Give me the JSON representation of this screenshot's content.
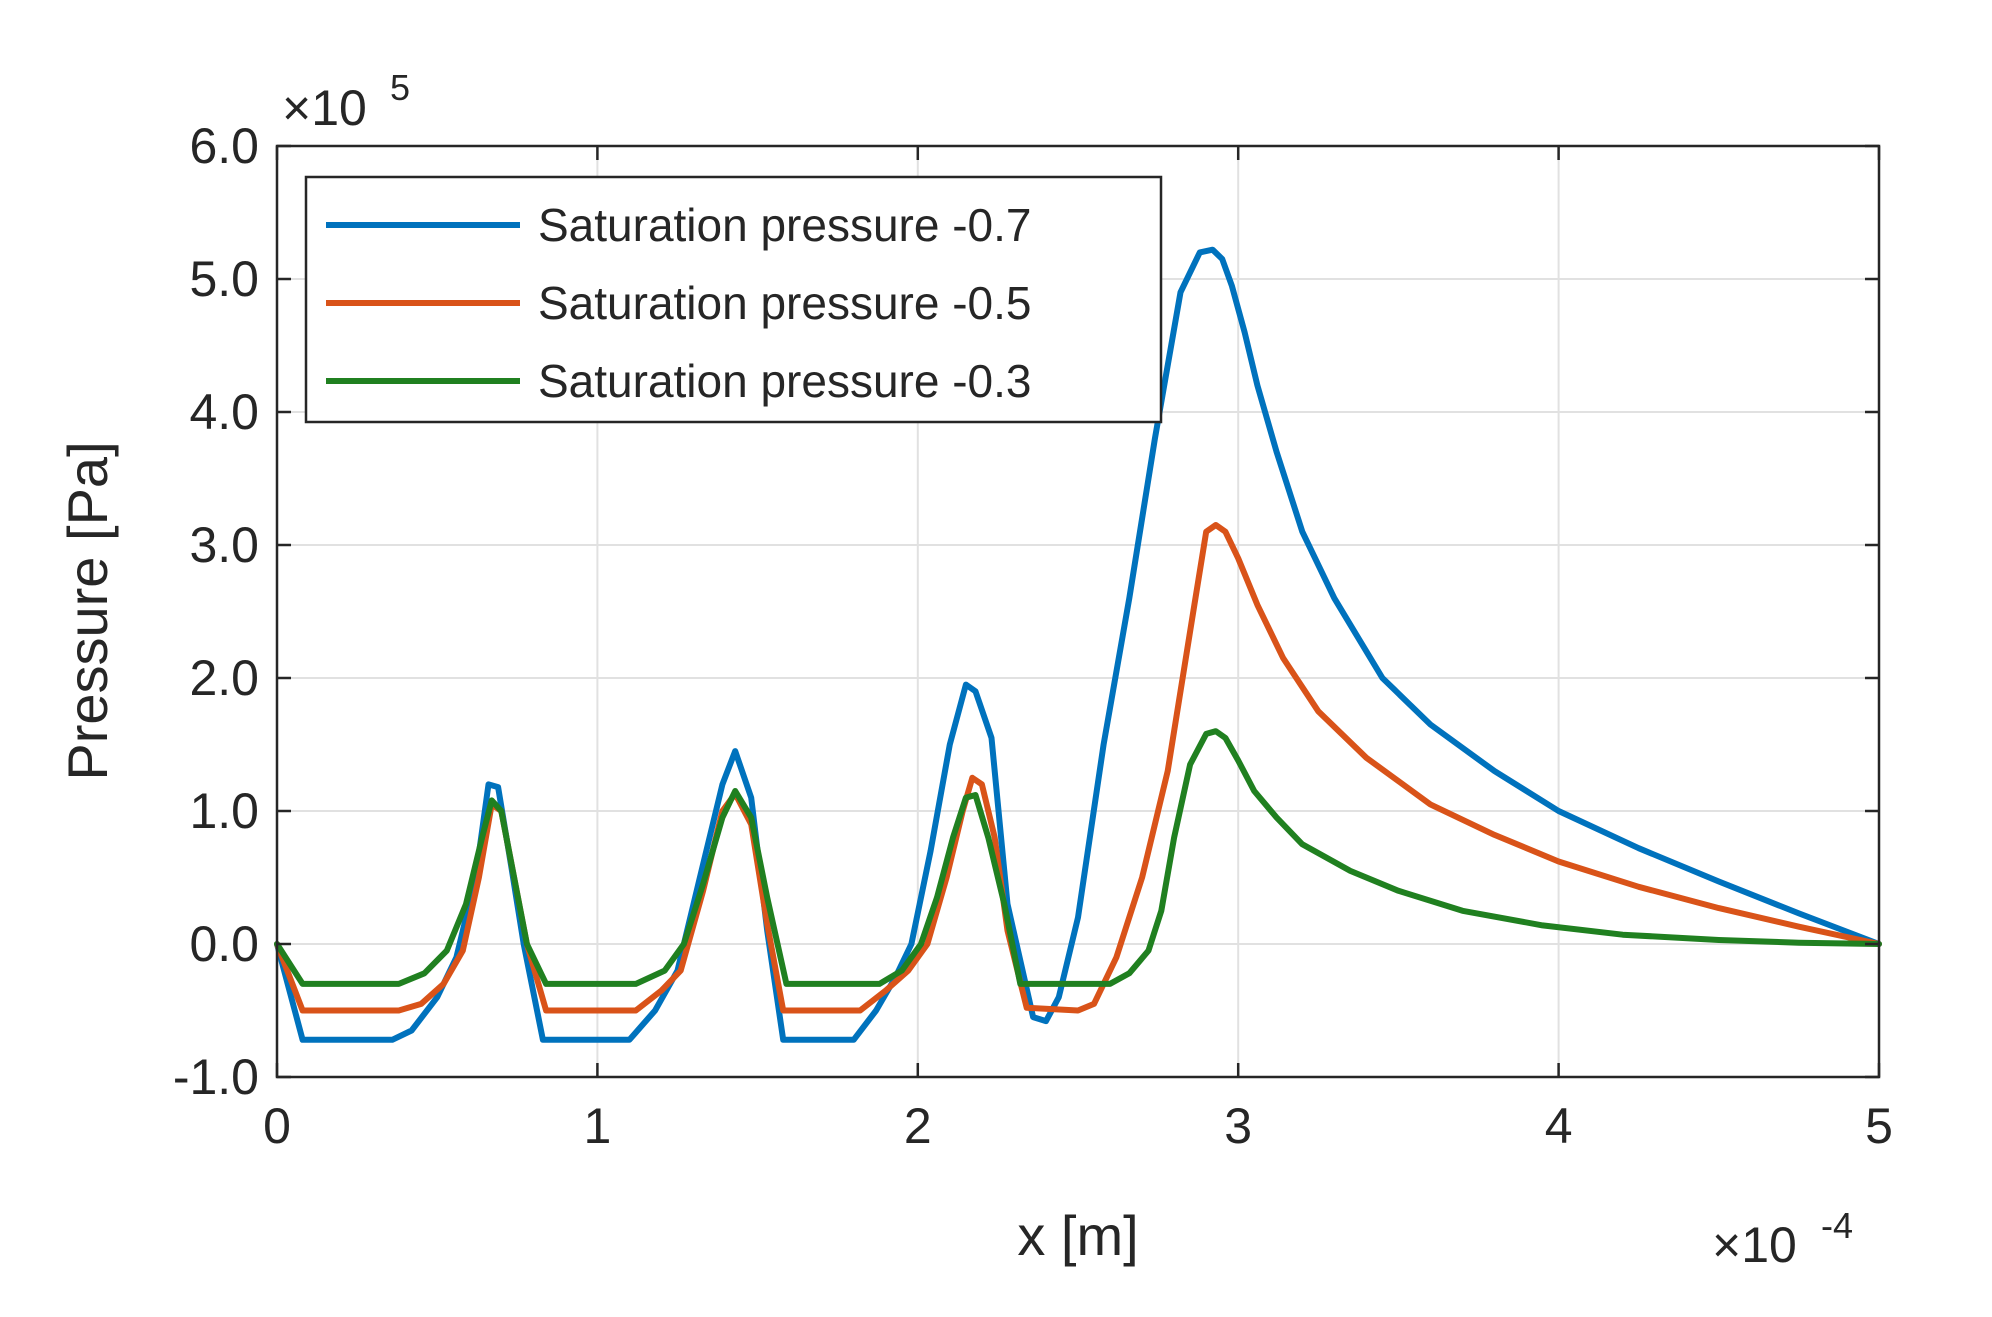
{
  "chart_data": {
    "type": "line",
    "title": "",
    "xlabel": "x [m]",
    "ylabel": "Pressure [Pa]",
    "x_multiplier_label": "×10",
    "x_multiplier_exp": "-4",
    "y_multiplier_label": "×10",
    "y_multiplier_exp": "5",
    "xlim": [
      0,
      5
    ],
    "ylim": [
      -1.0,
      6.0
    ],
    "xticks": [
      0,
      1,
      2,
      3,
      4,
      5
    ],
    "xtick_labels": [
      "0",
      "1",
      "2",
      "3",
      "4",
      "5"
    ],
    "yticks": [
      -1.0,
      0.0,
      1.0,
      2.0,
      3.0,
      4.0,
      5.0,
      6.0
    ],
    "ytick_labels": [
      "-1.0",
      "0.0",
      "1.0",
      "2.0",
      "3.0",
      "4.0",
      "5.0",
      "6.0"
    ],
    "grid": true,
    "legend_position": "top-left",
    "series": [
      {
        "name": "Saturation pressure -0.7",
        "color": "#0072BD",
        "x": [
          0,
          0.08,
          0.36,
          0.42,
          0.5,
          0.56,
          0.62,
          0.66,
          0.69,
          0.73,
          0.77,
          0.83,
          1.1,
          1.18,
          1.25,
          1.32,
          1.39,
          1.43,
          1.48,
          1.53,
          1.58,
          1.8,
          1.87,
          1.93,
          1.98,
          2.04,
          2.1,
          2.15,
          2.18,
          2.23,
          2.28,
          2.36,
          2.4,
          2.44,
          2.5,
          2.58,
          2.66,
          2.74,
          2.82,
          2.88,
          2.92,
          2.95,
          2.98,
          3.02,
          3.06,
          3.12,
          3.2,
          3.3,
          3.45,
          3.6,
          3.8,
          4.0,
          4.25,
          4.5,
          4.75,
          5.0
        ],
        "y": [
          0,
          -0.72,
          -0.72,
          -0.65,
          -0.4,
          -0.1,
          0.5,
          1.2,
          1.18,
          0.6,
          0.0,
          -0.72,
          -0.72,
          -0.5,
          -0.2,
          0.5,
          1.2,
          1.45,
          1.1,
          0.1,
          -0.72,
          -0.72,
          -0.5,
          -0.25,
          0.0,
          0.7,
          1.5,
          1.95,
          1.9,
          1.55,
          0.3,
          -0.55,
          -0.58,
          -0.4,
          0.2,
          1.5,
          2.6,
          3.8,
          4.9,
          5.2,
          5.22,
          5.15,
          4.95,
          4.6,
          4.2,
          3.7,
          3.1,
          2.6,
          2.0,
          1.65,
          1.3,
          1.0,
          0.72,
          0.47,
          0.23,
          0.0
        ]
      },
      {
        "name": "Saturation pressure -0.5",
        "color": "#D95319",
        "x": [
          0,
          0.08,
          0.38,
          0.45,
          0.52,
          0.58,
          0.63,
          0.67,
          0.7,
          0.74,
          0.78,
          0.84,
          1.12,
          1.2,
          1.26,
          1.33,
          1.39,
          1.43,
          1.48,
          1.53,
          1.58,
          1.82,
          1.9,
          1.97,
          2.03,
          2.09,
          2.14,
          2.17,
          2.2,
          2.24,
          2.28,
          2.34,
          2.5,
          2.55,
          2.62,
          2.7,
          2.78,
          2.86,
          2.9,
          2.93,
          2.96,
          3.0,
          3.06,
          3.14,
          3.25,
          3.4,
          3.6,
          3.8,
          4.0,
          4.25,
          4.5,
          4.75,
          5.0
        ],
        "y": [
          0,
          -0.5,
          -0.5,
          -0.45,
          -0.3,
          -0.05,
          0.5,
          1.05,
          1.0,
          0.5,
          0.0,
          -0.5,
          -0.5,
          -0.35,
          -0.2,
          0.4,
          1.0,
          1.13,
          0.9,
          0.15,
          -0.5,
          -0.5,
          -0.35,
          -0.2,
          0.0,
          0.5,
          1.0,
          1.25,
          1.2,
          0.8,
          0.1,
          -0.48,
          -0.5,
          -0.45,
          -0.1,
          0.5,
          1.3,
          2.5,
          3.1,
          3.15,
          3.1,
          2.9,
          2.55,
          2.15,
          1.75,
          1.4,
          1.05,
          0.82,
          0.62,
          0.43,
          0.27,
          0.13,
          0.0
        ]
      },
      {
        "name": "Saturation pressure -0.3",
        "color": "#208020",
        "x": [
          0,
          0.08,
          0.38,
          0.46,
          0.53,
          0.59,
          0.64,
          0.67,
          0.7,
          0.74,
          0.78,
          0.84,
          1.12,
          1.21,
          1.27,
          1.33,
          1.39,
          1.43,
          1.48,
          1.53,
          1.59,
          1.88,
          1.95,
          2.01,
          2.06,
          2.11,
          2.15,
          2.18,
          2.22,
          2.27,
          2.32,
          2.6,
          2.66,
          2.72,
          2.76,
          2.8,
          2.85,
          2.9,
          2.93,
          2.96,
          3.0,
          3.05,
          3.12,
          3.2,
          3.35,
          3.5,
          3.7,
          3.95,
          4.2,
          4.5,
          4.75,
          5.0
        ],
        "y": [
          0,
          -0.3,
          -0.3,
          -0.22,
          -0.05,
          0.3,
          0.8,
          1.08,
          1.0,
          0.5,
          0.0,
          -0.3,
          -0.3,
          -0.2,
          0.0,
          0.45,
          0.95,
          1.15,
          0.95,
          0.35,
          -0.3,
          -0.3,
          -0.2,
          0.0,
          0.35,
          0.8,
          1.1,
          1.12,
          0.8,
          0.3,
          -0.3,
          -0.3,
          -0.22,
          -0.05,
          0.25,
          0.8,
          1.35,
          1.58,
          1.6,
          1.55,
          1.38,
          1.15,
          0.95,
          0.75,
          0.55,
          0.4,
          0.25,
          0.14,
          0.07,
          0.03,
          0.01,
          0.0
        ]
      }
    ]
  }
}
